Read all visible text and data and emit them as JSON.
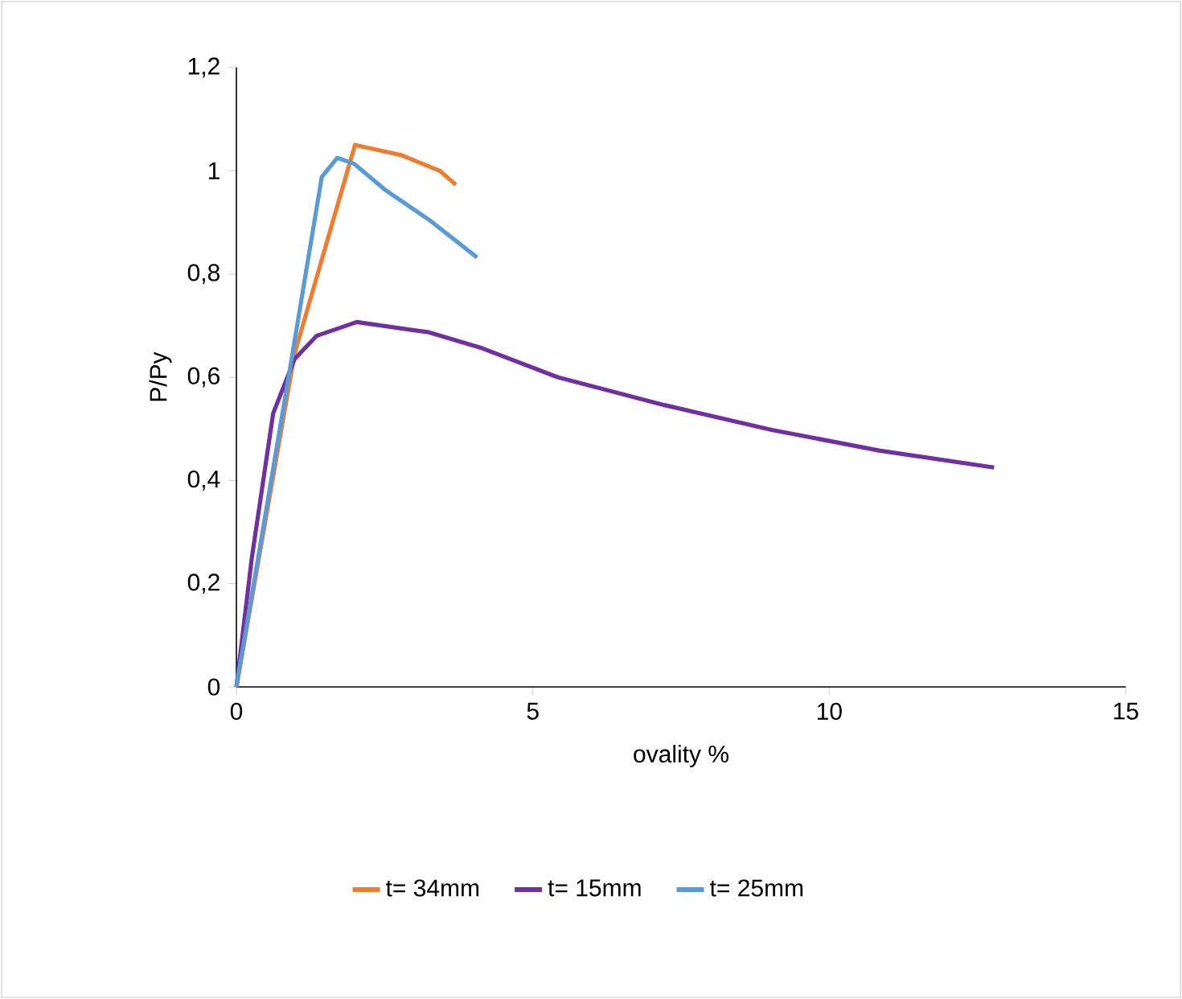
{
  "chart_data": {
    "type": "line",
    "xlabel": "ovality %",
    "ylabel": "P/Py",
    "xlim": [
      0,
      15
    ],
    "xticks": [
      0,
      5,
      10,
      15
    ],
    "ylim": [
      0,
      1.2
    ],
    "yticks": [
      0,
      {
        "value": 0.2,
        "label": "0,2"
      },
      {
        "value": 0.4,
        "label": "0,4"
      },
      {
        "value": 0.6,
        "label": "0,6"
      },
      {
        "value": 0.8,
        "label": "0,8"
      },
      1,
      {
        "value": 1.2,
        "label": "1,2"
      }
    ],
    "grid": false,
    "legend": "bottom",
    "marker": "none",
    "line_style": "solid",
    "series": [
      {
        "name": "t= 34mm",
        "color": "#ed7d31",
        "x": [
          0,
          0.98,
          2.0,
          2.79,
          3.43,
          3.7
        ],
        "values": [
          0,
          0.645,
          1.05,
          1.03,
          1.0,
          0.973
        ]
      },
      {
        "name": "t= 15mm",
        "color": "#7030a0",
        "x": [
          0,
          0.26,
          0.62,
          0.98,
          1.35,
          2.03,
          3.25,
          4.15,
          5.42,
          7.22,
          9.03,
          10.84,
          12.78
        ],
        "values": [
          0,
          0.25,
          0.53,
          0.635,
          0.68,
          0.707,
          0.687,
          0.656,
          0.6,
          0.546,
          0.498,
          0.458,
          0.425
        ]
      },
      {
        "name": "t= 25mm",
        "color": "#5b9bd5",
        "x": [
          0,
          0.9,
          1.44,
          1.7,
          1.98,
          2.52,
          3.25,
          4.06
        ],
        "values": [
          0,
          0.614,
          0.988,
          1.025,
          1.014,
          0.962,
          0.905,
          0.832
        ]
      }
    ]
  }
}
